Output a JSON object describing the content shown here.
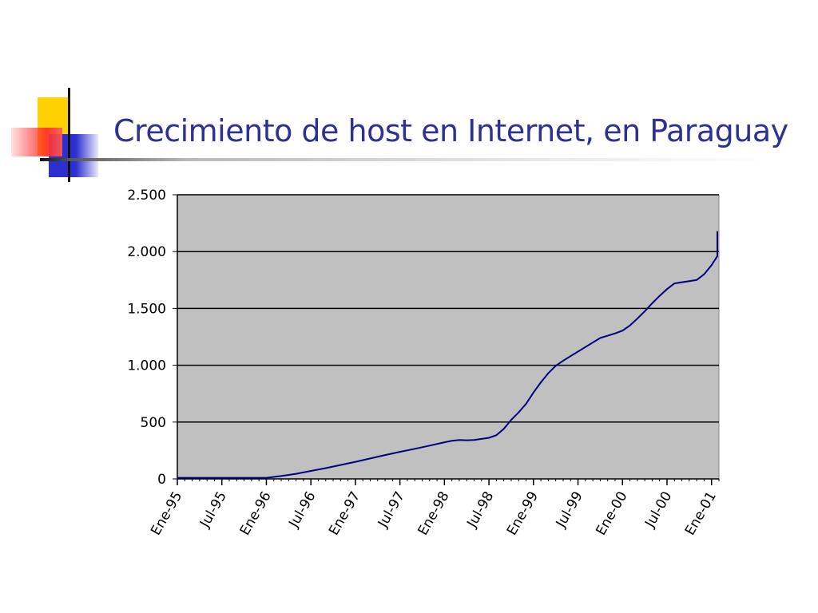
{
  "slide": {
    "title": "Crecimiento de host en Internet, en Paraguay"
  },
  "colors": {
    "title": "#2e3192",
    "plot_bg": "#c0c0c0",
    "line": "#000080",
    "grid": "#000000",
    "deco_yellow": "#ffd200",
    "deco_red": "#ff2a2a",
    "deco_blue": "#2d2fd1"
  },
  "chart_data": {
    "type": "line",
    "title": "Crecimiento de host en Internet, en Paraguay",
    "xlabel": "",
    "ylabel": "",
    "ylim": [
      0,
      2500
    ],
    "yticks": [
      0,
      500,
      1000,
      1500,
      2000,
      2500
    ],
    "ytick_labels": [
      "0",
      "500",
      "1.000",
      "1.500",
      "2.000",
      "2.500"
    ],
    "grid": true,
    "categories": [
      "Ene-95",
      "Jul-95",
      "Ene-96",
      "Jul-96",
      "Ene-97",
      "Jul-97",
      "Ene-98",
      "Jul-98",
      "Ene-99",
      "Jul-99",
      "Ene-00",
      "Jul-00",
      "Ene-01"
    ],
    "xlim": [
      0,
      73
    ],
    "series": [
      {
        "points": [
          [
            0,
            10
          ],
          [
            6,
            10
          ],
          [
            12,
            10
          ],
          [
            14,
            25
          ],
          [
            16,
            45
          ],
          [
            18,
            70
          ],
          [
            20,
            95
          ],
          [
            24,
            150
          ],
          [
            26,
            180
          ],
          [
            28,
            210
          ],
          [
            30,
            238
          ],
          [
            32,
            265
          ],
          [
            34,
            293
          ],
          [
            36,
            322
          ],
          [
            37,
            335
          ],
          [
            38,
            342
          ],
          [
            39,
            340
          ],
          [
            40,
            342
          ],
          [
            41,
            352
          ],
          [
            42,
            362
          ],
          [
            43,
            385
          ],
          [
            44,
            440
          ],
          [
            45,
            520
          ],
          [
            46,
            585
          ],
          [
            47,
            660
          ],
          [
            48,
            760
          ],
          [
            49,
            850
          ],
          [
            50,
            930
          ],
          [
            51,
            995
          ],
          [
            52,
            1040
          ],
          [
            53,
            1080
          ],
          [
            54,
            1120
          ],
          [
            55,
            1160
          ],
          [
            56,
            1200
          ],
          [
            57,
            1240
          ],
          [
            58,
            1260
          ],
          [
            59,
            1280
          ],
          [
            60,
            1305
          ],
          [
            61,
            1350
          ],
          [
            62,
            1410
          ],
          [
            63,
            1475
          ],
          [
            64,
            1545
          ],
          [
            65,
            1610
          ],
          [
            66,
            1670
          ],
          [
            67,
            1720
          ],
          [
            68,
            1730
          ],
          [
            69,
            1740
          ],
          [
            70,
            1750
          ],
          [
            71,
            1800
          ],
          [
            72,
            1880
          ],
          [
            73,
            1960
          ],
          [
            74,
            2070
          ],
          [
            75,
            2180
          ]
        ]
      }
    ]
  }
}
